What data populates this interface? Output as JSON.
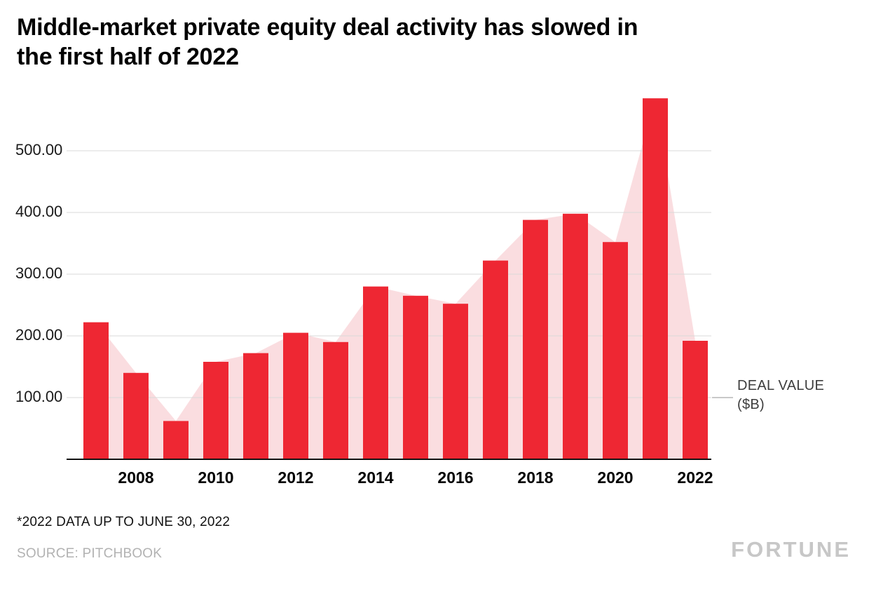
{
  "title": "Middle-market private equity deal activity has slowed in the first half of 2022",
  "title_lines": [
    "Middle-market private equity deal activity has slowed in",
    "the first half of 2022"
  ],
  "footnote": "*2022 DATA UP TO JUNE 30, 2022",
  "source": "SOURCE: PITCHBOOK",
  "brand": "FORTUNE",
  "series_label": {
    "line1": "DEAL VALUE",
    "line2": "($B)"
  },
  "colors": {
    "title": "#000000",
    "bar": "#ee2733",
    "area": "#fadde0",
    "gridline": "#d9d9d9",
    "axis": "#111111",
    "tick_label": "#1a1a1a",
    "x_label": "#000000",
    "series_label": "#3d3d3d",
    "source": "#b2b2b2",
    "brand": "#c7c7c7"
  },
  "chart_data": {
    "type": "bar",
    "overlay": "area",
    "title": "Middle-market private equity deal activity has slowed in the first half of 2022",
    "xlabel": "",
    "ylabel": "DEAL VALUE ($B)",
    "ylim": [
      0,
      600
    ],
    "grid": true,
    "legend_position": "right",
    "categories": [
      "2007",
      "2008",
      "2009",
      "2010",
      "2011",
      "2012",
      "2013",
      "2014",
      "2015",
      "2016",
      "2017",
      "2018",
      "2019",
      "2020",
      "2021",
      "2022"
    ],
    "values": [
      222,
      140,
      62,
      158,
      172,
      205,
      190,
      280,
      265,
      252,
      322,
      388,
      398,
      352,
      585,
      192
    ],
    "y_ticks": [
      {
        "value": 100,
        "label": "100.00"
      },
      {
        "value": 200,
        "label": "200.00"
      },
      {
        "value": 300,
        "label": "300.00"
      },
      {
        "value": 400,
        "label": "400.00"
      },
      {
        "value": 500,
        "label": "500.00"
      }
    ],
    "x_ticks": [
      {
        "index": 1,
        "label": "2008"
      },
      {
        "index": 3,
        "label": "2010"
      },
      {
        "index": 5,
        "label": "2012"
      },
      {
        "index": 7,
        "label": "2014"
      },
      {
        "index": 9,
        "label": "2016"
      },
      {
        "index": 11,
        "label": "2018"
      },
      {
        "index": 13,
        "label": "2020"
      },
      {
        "index": 15,
        "label": "2022"
      }
    ]
  }
}
